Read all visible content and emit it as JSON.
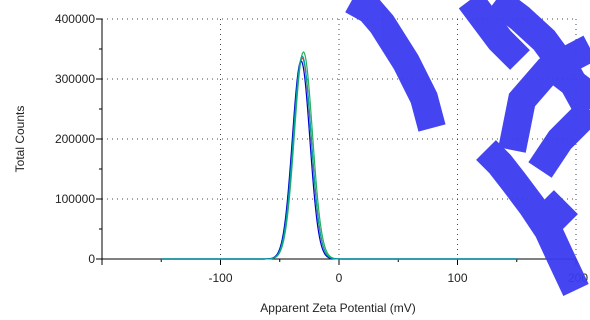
{
  "chart_data": {
    "type": "line",
    "title": "",
    "xlabel": "Apparent Zeta Potential (mV)",
    "ylabel": "Total Counts",
    "xlim": [
      -200,
      200
    ],
    "ylim": [
      0,
      400000
    ],
    "x_ticks": [
      -100,
      0,
      100,
      200
    ],
    "x_tick_labels": [
      "-100",
      "0",
      "100",
      "200"
    ],
    "y_ticks": [
      0,
      100000,
      200000,
      300000,
      400000
    ],
    "y_tick_labels": [
      "0",
      "100000",
      "200000",
      "300000",
      "400000"
    ],
    "grid": true,
    "legend": "none",
    "x_range_drawn": [
      -150,
      150
    ],
    "series": [
      {
        "color": "#c0392b",
        "peak_x": -31,
        "peak_y": 335000,
        "sigma": 7.5
      },
      {
        "color": "#27ae60",
        "peak_x": -30,
        "peak_y": 345000,
        "sigma": 7.6
      },
      {
        "color": "#0000cc",
        "peak_x": -32,
        "peak_y": 330000,
        "sigma": 7.4
      },
      {
        "color": "#00a3a3",
        "peak_x": -31,
        "peak_y": 338000,
        "sigma": 7.5
      }
    ],
    "watermark_color": "#3b3bf0"
  }
}
